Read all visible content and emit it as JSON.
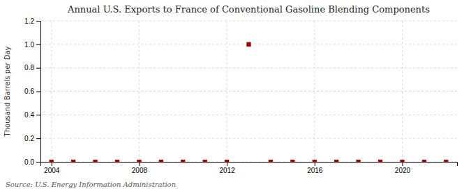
{
  "chart_data": {
    "type": "scatter",
    "title": "Annual U.S. Exports to France of Conventional Gasoline Blending Components",
    "ylabel": "Thousand Barrels per Day",
    "source": "Source: U.S. Energy Information Administration",
    "x": [
      2004,
      2005,
      2006,
      2007,
      2008,
      2009,
      2010,
      2011,
      2012,
      2013,
      2014,
      2015,
      2016,
      2017,
      2018,
      2019,
      2020,
      2021,
      2022
    ],
    "values": [
      0.0,
      0.0,
      0.0,
      0.0,
      0.0,
      0.0,
      0.0,
      0.0,
      0.0,
      1.0,
      0.0,
      0.0,
      0.0,
      0.0,
      0.0,
      0.0,
      0.0,
      0.0,
      0.0
    ],
    "color": "#aa0000",
    "marker": "square",
    "xlim": [
      2003.5,
      2022.5
    ],
    "ylim": [
      0.0,
      1.2
    ],
    "xticks": [
      2004,
      2008,
      2012,
      2016,
      2020
    ],
    "yticks": [
      {
        "value": 0.0,
        "label": "0.0"
      },
      0.2,
      0.4,
      0.6,
      0.8,
      {
        "value": 1.0,
        "label": "1.0"
      },
      1.2
    ],
    "grid": true
  }
}
